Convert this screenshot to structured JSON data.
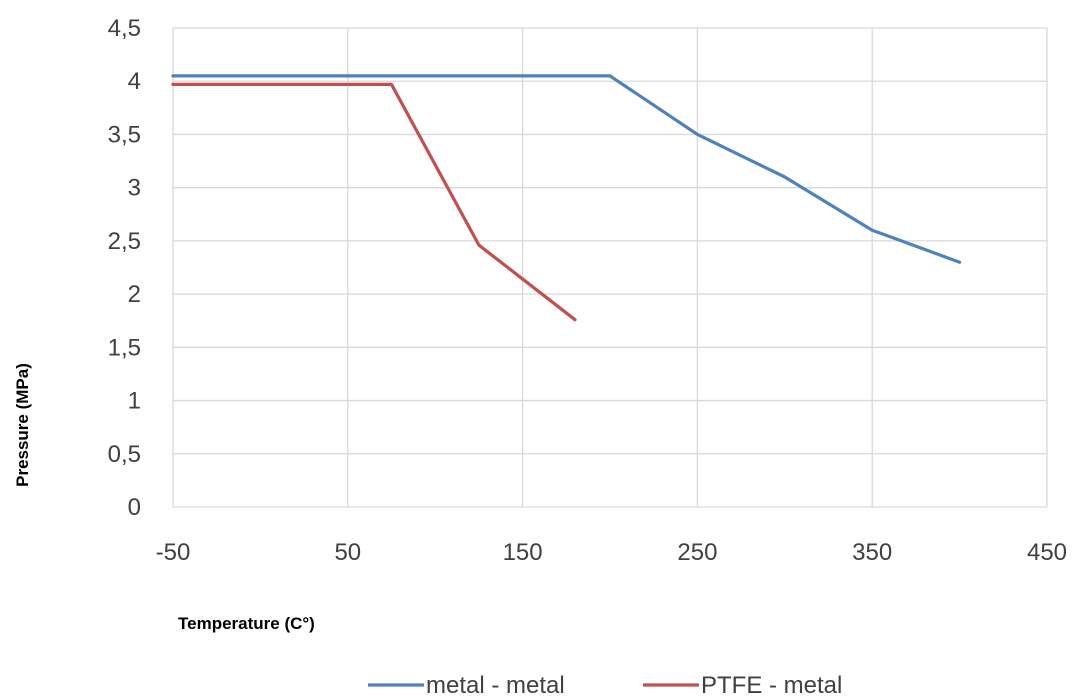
{
  "chart_data": {
    "type": "line",
    "title": "",
    "xlabel": "Temperature (C°)",
    "ylabel": "Pressure (MPa)",
    "xlim": [
      -50,
      450
    ],
    "ylim": [
      0,
      4.5
    ],
    "x_ticks": [
      -50,
      50,
      150,
      250,
      350,
      450
    ],
    "x_tick_labels": [
      "-50",
      "50",
      "150",
      "250",
      "350",
      "450"
    ],
    "y_ticks": [
      0,
      0.5,
      1,
      1.5,
      2,
      2.5,
      3,
      3.5,
      4,
      4.5
    ],
    "y_tick_labels": [
      "0",
      "0,5",
      "1",
      "1,5",
      "2",
      "2,5",
      "3",
      "3,5",
      "4",
      "4,5"
    ],
    "grid": "vertical and horizontal major gridlines",
    "legend_position": "bottom",
    "series": [
      {
        "name": "metal - metal",
        "color": "#4f81bd",
        "points": [
          [
            -50,
            4.05
          ],
          [
            200,
            4.05
          ],
          [
            250,
            3.5
          ],
          [
            300,
            3.1
          ],
          [
            350,
            2.6
          ],
          [
            400,
            2.3
          ]
        ]
      },
      {
        "name": "PTFE - metal",
        "color": "#c0504d",
        "points": [
          [
            -50,
            3.97
          ],
          [
            75,
            3.97
          ],
          [
            125,
            2.46
          ],
          [
            180,
            1.76
          ]
        ]
      }
    ]
  }
}
